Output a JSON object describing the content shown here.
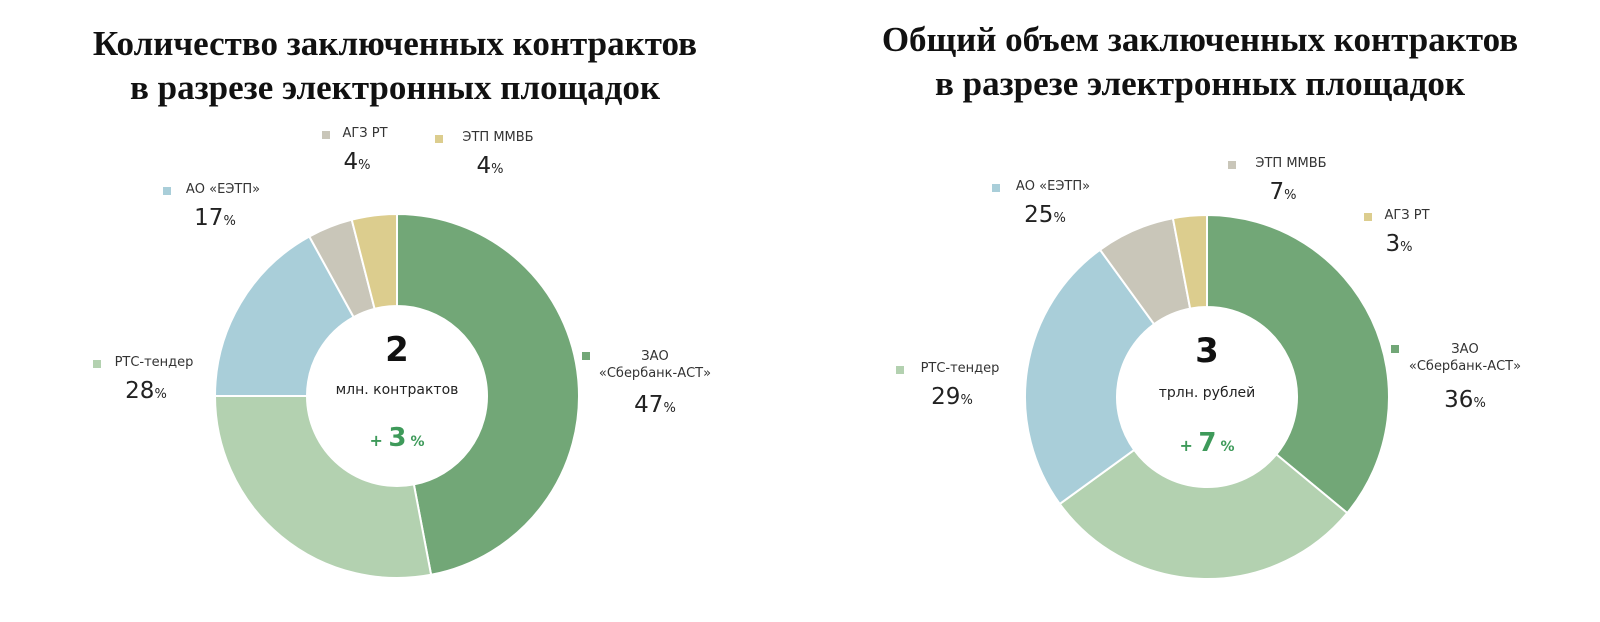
{
  "chart_data": [
    {
      "type": "pie",
      "title": "Количество заключенных контрактов в разрезе электронных площадок",
      "title_lines": [
        "Количество заключенных контрактов",
        "в разрезе электронных площадок"
      ],
      "center": {
        "value": "2",
        "unit": "млн. контрактов",
        "change_sign": "+",
        "change_value": "3",
        "change_unit": "%"
      },
      "slices": [
        {
          "name": "ЗАО «Сбербанк-АСТ»",
          "label_lines": [
            "ЗАО",
            "«Сбербанк-АСТ»"
          ],
          "value": 47,
          "color": "#72a777"
        },
        {
          "name": "РТС-тендер",
          "label_lines": [
            "РТС-тендер"
          ],
          "value": 28,
          "color": "#b3d1b0"
        },
        {
          "name": "АО «ЕЭТП»",
          "label_lines": [
            "АО «ЕЭТП»"
          ],
          "value": 17,
          "color": "#a9ced9"
        },
        {
          "name": "АГЗ РТ",
          "label_lines": [
            "АГЗ РТ"
          ],
          "value": 4,
          "color": "#c9c6b9"
        },
        {
          "name": "ЭТП ММВБ",
          "label_lines": [
            "ЭТП ММВБ"
          ],
          "value": 4,
          "color": "#dccd8e"
        }
      ],
      "value_suffix": "%"
    },
    {
      "type": "pie",
      "title": "Общий объем заключенных контрактов в разрезе электронных площадок",
      "title_lines": [
        "Общий объем заключенных контрактов",
        "в разрезе электронных площадок"
      ],
      "center": {
        "value": "3",
        "unit": "трлн. рублей",
        "change_sign": "+",
        "change_value": "7",
        "change_unit": "%"
      },
      "slices": [
        {
          "name": "ЗАО «Сбербанк-АСТ»",
          "label_lines": [
            "ЗАО",
            "«Сбербанк-АСТ»"
          ],
          "value": 36,
          "color": "#72a777"
        },
        {
          "name": "РТС-тендер",
          "label_lines": [
            "РТС-тендер"
          ],
          "value": 29,
          "color": "#b3d1b0"
        },
        {
          "name": "АО «ЕЭТП»",
          "label_lines": [
            "АО «ЕЭТП»"
          ],
          "value": 25,
          "color": "#a9ced9"
        },
        {
          "name": "ЭТП ММВБ",
          "label_lines": [
            "ЭТП ММВБ"
          ],
          "value": 7,
          "color": "#c9c6b9"
        },
        {
          "name": "АГЗ РТ",
          "label_lines": [
            "АГЗ РТ"
          ],
          "value": 3,
          "color": "#dccd8e"
        }
      ],
      "value_suffix": "%"
    }
  ],
  "colors": {
    "change_accent": "#3e9a5a",
    "text": "#222222",
    "background": "#ffffff"
  }
}
